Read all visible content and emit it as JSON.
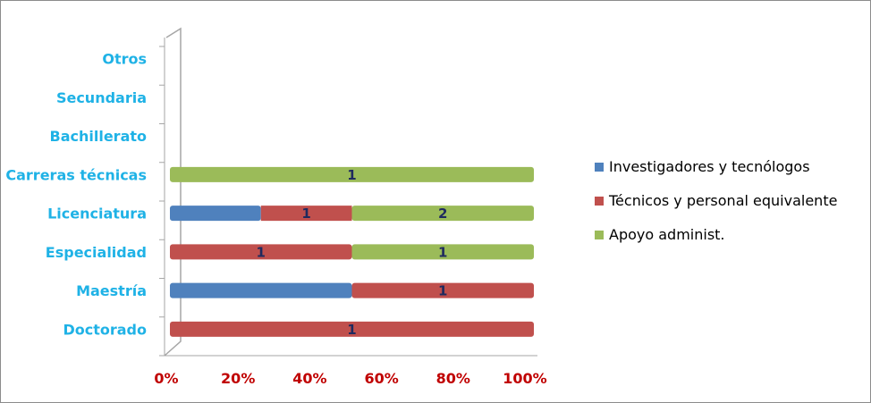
{
  "chart_data": {
    "type": "bar",
    "orientation": "horizontal",
    "stacking": "percent",
    "categories": [
      "Doctorado",
      "Maestría",
      "Especialidad",
      "Licenciatura",
      "Carreras técnicas",
      "Bachillerato",
      "Secundaria",
      "Otros"
    ],
    "series": [
      {
        "name": "Investigadores y tecnólogos",
        "color": "#4f81bd",
        "values": [
          0,
          1,
          0,
          1,
          0,
          0,
          0,
          0
        ]
      },
      {
        "name": "Técnicos y personal equivalente",
        "color": "#c0504d",
        "values": [
          1,
          1,
          1,
          1,
          0,
          0,
          0,
          0
        ]
      },
      {
        "name": "Apoyo administ.",
        "color": "#9bbb59",
        "values": [
          0,
          0,
          1,
          2,
          1,
          0,
          0,
          0
        ]
      }
    ],
    "data_labels": [
      {
        "category": "Doctorado",
        "series": "Técnicos y personal equivalente",
        "text": "1"
      },
      {
        "category": "Maestría",
        "series": "Técnicos y personal equivalente",
        "text": "1"
      },
      {
        "category": "Especialidad",
        "series": "Técnicos y personal equivalente",
        "text": "1"
      },
      {
        "category": "Especialidad",
        "series": "Apoyo administ.",
        "text": "1"
      },
      {
        "category": "Licenciatura",
        "series": "Técnicos y personal equivalente",
        "text": "1"
      },
      {
        "category": "Licenciatura",
        "series": "Apoyo administ.",
        "text": "2"
      },
      {
        "category": "Carreras técnicas",
        "series": "Apoyo administ.",
        "text": "1"
      }
    ],
    "x_ticks": [
      "0%",
      "20%",
      "40%",
      "60%",
      "80%",
      "100%"
    ],
    "xlim": [
      0,
      100
    ],
    "grid": false,
    "legend_position": "right",
    "title": "",
    "xlabel": "",
    "ylabel": "",
    "colors": {
      "category_labels": "#1fb2e6",
      "tick_labels": "#c00000",
      "data_labels": "#1f2a5e"
    }
  }
}
